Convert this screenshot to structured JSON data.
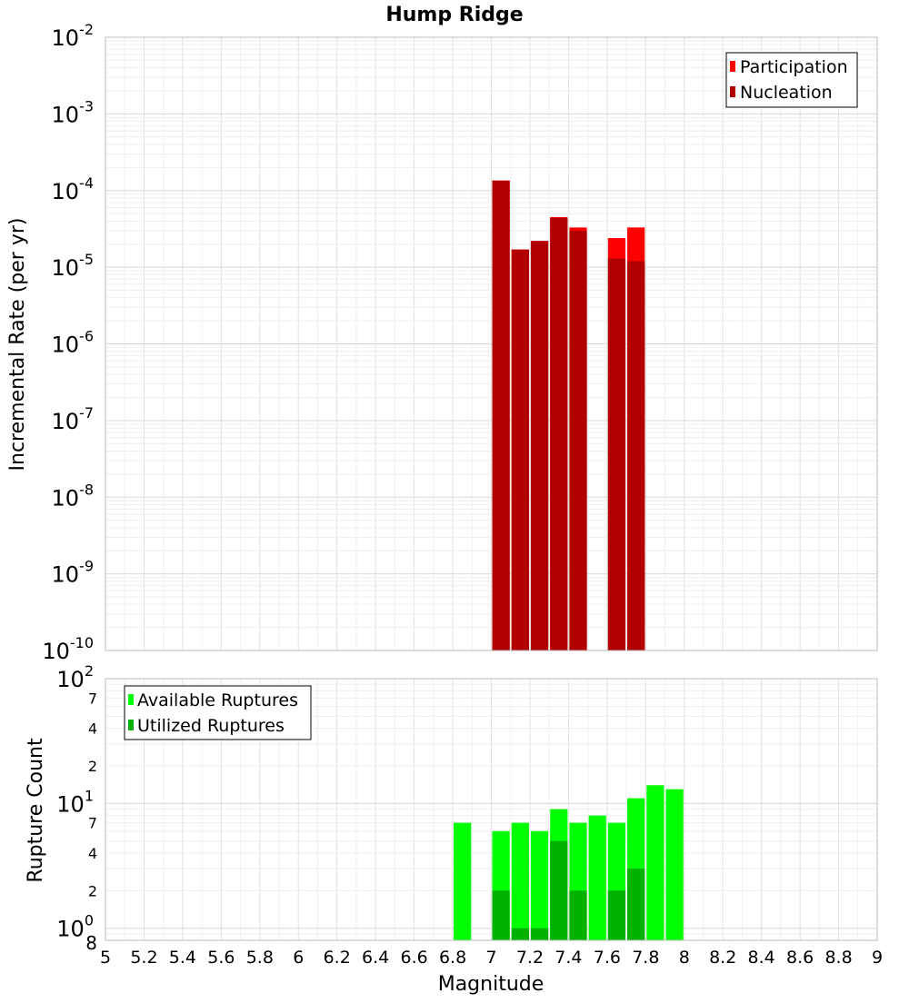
{
  "chart_data": [
    {
      "type": "bar",
      "title": "Hump Ridge",
      "xlabel": "Magnitude",
      "ylabel": "Incremental Rate (per yr)",
      "yscale": "log",
      "ylim": [
        1e-10,
        0.01
      ],
      "xlim": [
        5,
        9
      ],
      "grid": true,
      "legend_position": "top-right",
      "y_ticks": [
        {
          "base": "10",
          "exp": "-10"
        },
        {
          "base": "10",
          "exp": "-9"
        },
        {
          "base": "10",
          "exp": "-8"
        },
        {
          "base": "10",
          "exp": "-7"
        },
        {
          "base": "10",
          "exp": "-6"
        },
        {
          "base": "10",
          "exp": "-5"
        },
        {
          "base": "10",
          "exp": "-4"
        },
        {
          "base": "10",
          "exp": "-3"
        },
        {
          "base": "10",
          "exp": "-2"
        }
      ],
      "series": [
        {
          "name": "Participation",
          "color": "#ff0000",
          "x": [
            7.05,
            7.15,
            7.25,
            7.35,
            7.45,
            7.65,
            7.75
          ],
          "values": [
            0.000135,
            1.7e-05,
            2.2e-05,
            4.5e-05,
            3.3e-05,
            2.4e-05,
            3.3e-05
          ]
        },
        {
          "name": "Nucleation",
          "color": "#b20000",
          "x": [
            7.05,
            7.15,
            7.25,
            7.35,
            7.45,
            7.65,
            7.75
          ],
          "values": [
            0.000135,
            1.7e-05,
            2.2e-05,
            4.4e-05,
            3e-05,
            1.3e-05,
            1.2e-05
          ]
        }
      ]
    },
    {
      "type": "bar",
      "title": "",
      "xlabel": "Magnitude",
      "ylabel": "Rupture Count",
      "yscale": "log",
      "ylim": [
        0.8,
        100
      ],
      "xlim": [
        5,
        9
      ],
      "grid": true,
      "legend_position": "top-left",
      "x_ticks": [
        "5",
        "5.2",
        "5.4",
        "5.6",
        "5.8",
        "6",
        "6.2",
        "6.4",
        "6.6",
        "6.8",
        "7",
        "7.2",
        "7.4",
        "7.6",
        "7.8",
        "8",
        "8.2",
        "8.4",
        "8.6",
        "8.8",
        "9"
      ],
      "y_major_ticks": [
        {
          "value": 1,
          "base": "10",
          "exp": "0"
        },
        {
          "value": 10,
          "base": "10",
          "exp": "1"
        },
        {
          "value": 100,
          "base": "10",
          "exp": "2"
        }
      ],
      "y_minor_ticks": [
        {
          "value": 0.8,
          "label": "8"
        },
        {
          "value": 2,
          "label": "2"
        },
        {
          "value": 4,
          "label": "4"
        },
        {
          "value": 7,
          "label": "7"
        },
        {
          "value": 20,
          "label": "2"
        },
        {
          "value": 40,
          "label": "4"
        },
        {
          "value": 70,
          "label": "7"
        }
      ],
      "series": [
        {
          "name": "Available Ruptures",
          "color": "#00ff00",
          "x": [
            6.85,
            7.05,
            7.15,
            7.25,
            7.35,
            7.45,
            7.55,
            7.65,
            7.75,
            7.85,
            7.95
          ],
          "values": [
            7,
            6,
            7,
            6,
            9,
            7,
            8,
            7,
            11,
            14,
            13
          ]
        },
        {
          "name": "Utilized Ruptures",
          "color": "#00b200",
          "x": [
            7.05,
            7.15,
            7.25,
            7.35,
            7.45,
            7.65,
            7.75
          ],
          "values": [
            2,
            1,
            1,
            5,
            2,
            2,
            3
          ]
        }
      ]
    }
  ]
}
